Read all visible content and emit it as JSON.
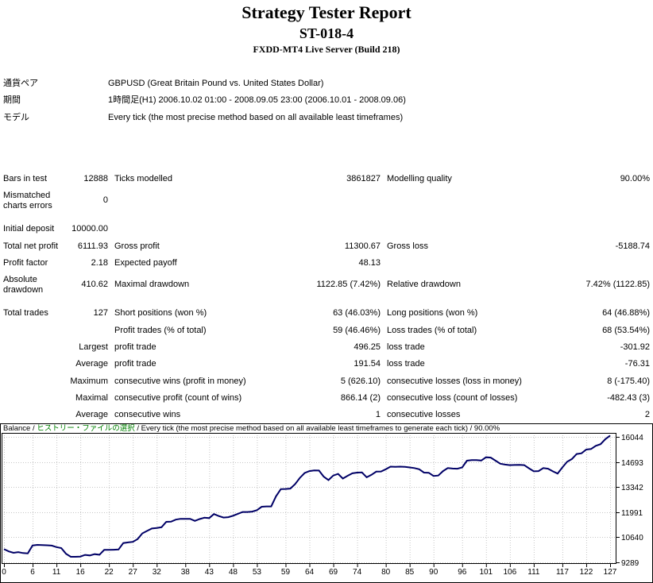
{
  "header": {
    "title": "Strategy Tester Report",
    "expert": "ST-018-4",
    "server": "FXDD-MT4 Live Server (Build 218)"
  },
  "settings": [
    {
      "label": "通貨ペア",
      "value": "GBPUSD (Great Britain Pound vs. United States Dollar)"
    },
    {
      "label": "期間",
      "value": "1時間足(H1) 2006.10.02 01:00 - 2008.09.05 23:00 (2006.10.01 - 2008.09.06)"
    },
    {
      "label": "モデル",
      "value": "Every tick (the most precise method based on all available least timeframes)"
    }
  ],
  "stats": {
    "rows": [
      {
        "cells": [
          "Bars in test",
          "12888",
          "Ticks modelled",
          "3861827",
          "Modelling quality",
          "90.00%"
        ]
      },
      {
        "cells": [
          "Mismatched charts errors",
          "0",
          "",
          "",
          "",
          ""
        ],
        "tall": true
      },
      {
        "spacer": true
      },
      {
        "cells": [
          "Initial deposit",
          "10000.00",
          "",
          "",
          "",
          ""
        ]
      },
      {
        "cells": [
          "Total net profit",
          "6111.93",
          "Gross profit",
          "11300.67",
          "Gross loss",
          "-5188.74"
        ]
      },
      {
        "cells": [
          "Profit factor",
          "2.18",
          "Expected payoff",
          "48.13",
          "",
          ""
        ]
      },
      {
        "cells": [
          "Absolute drawdown",
          "410.62",
          "Maximal drawdown",
          "1122.85 (7.42%)",
          "Relative drawdown",
          "7.42% (1122.85)"
        ],
        "tall": true
      },
      {
        "spacer": true
      },
      {
        "cells": [
          "Total trades",
          "127",
          "Short positions (won %)",
          "63 (46.03%)",
          "Long positions (won %)",
          "64 (46.88%)"
        ]
      },
      {
        "cells": [
          "",
          "",
          "Profit trades (% of total)",
          "59 (46.46%)",
          "Loss trades (% of total)",
          "68 (53.54%)"
        ]
      },
      {
        "cells": [
          "",
          "Largest",
          "profit trade",
          "496.25",
          "loss trade",
          "-301.92"
        ]
      },
      {
        "cells": [
          "",
          "Average",
          "profit trade",
          "191.54",
          "loss trade",
          "-76.31"
        ]
      },
      {
        "cells": [
          "",
          "Maximum",
          "consecutive wins (profit in money)",
          "5 (626.10)",
          "consecutive losses (loss in money)",
          "8 (-175.40)"
        ]
      },
      {
        "cells": [
          "",
          "Maximal",
          "consecutive profit (count of wins)",
          "866.14 (2)",
          "consecutive loss (count of losses)",
          "-482.43 (3)"
        ]
      },
      {
        "cells": [
          "",
          "Average",
          "consecutive wins",
          "1",
          "consecutive losses",
          "2"
        ]
      }
    ]
  },
  "chart_data": {
    "type": "line",
    "legend_parts": [
      {
        "text": "Balance / ",
        "color": "#000000"
      },
      {
        "text": "ヒストリー・ファイルの選択",
        "color": "#008000"
      },
      {
        "text": " / Every tick (the most precise method based on all available least timeframes to generate each tick) / 90.00%",
        "color": "#000000"
      }
    ],
    "y_ticks": [
      16044,
      14693,
      13342,
      11991,
      10640,
      9289
    ],
    "x_ticks": [
      0,
      6,
      11,
      16,
      22,
      27,
      32,
      38,
      43,
      48,
      53,
      59,
      64,
      69,
      74,
      80,
      85,
      90,
      96,
      101,
      106,
      111,
      117,
      122,
      127
    ],
    "x_range": [
      0,
      127
    ],
    "y_range": [
      9289,
      16044
    ],
    "grid": true,
    "line_color": "#000066",
    "grid_color": "#c6c6c6",
    "series": [
      {
        "name": "Balance",
        "values": [
          10000,
          9880,
          9800,
          9840,
          9790,
          9770,
          10200,
          10230,
          10220,
          10210,
          10190,
          10110,
          10060,
          9750,
          9590,
          9590,
          9600,
          9690,
          9660,
          9730,
          9700,
          9960,
          9960,
          9970,
          9980,
          10330,
          10360,
          10390,
          10540,
          10850,
          10980,
          11110,
          11140,
          11180,
          11470,
          11480,
          11590,
          11630,
          11630,
          11630,
          11520,
          11620,
          11690,
          11670,
          11890,
          11780,
          11700,
          11720,
          11800,
          11900,
          12000,
          12000,
          12020,
          12100,
          12280,
          12300,
          12300,
          12840,
          13230,
          13240,
          13260,
          13500,
          13840,
          14100,
          14200,
          14240,
          14230,
          13900,
          13720,
          13960,
          14050,
          13800,
          13950,
          14080,
          14120,
          14130,
          13870,
          14000,
          14170,
          14180,
          14300,
          14440,
          14430,
          14440,
          14430,
          14400,
          14365,
          14300,
          14120,
          14110,
          13940,
          13960,
          14200,
          14365,
          14340,
          14330,
          14400,
          14760,
          14790,
          14790,
          14770,
          14945,
          14930,
          14760,
          14600,
          14550,
          14520,
          14530,
          14540,
          14520,
          14350,
          14190,
          14200,
          14365,
          14330,
          14190,
          14070,
          14400,
          14700,
          14850,
          15120,
          15160,
          15360,
          15390,
          15560,
          15650,
          15920,
          16112
        ]
      }
    ]
  }
}
